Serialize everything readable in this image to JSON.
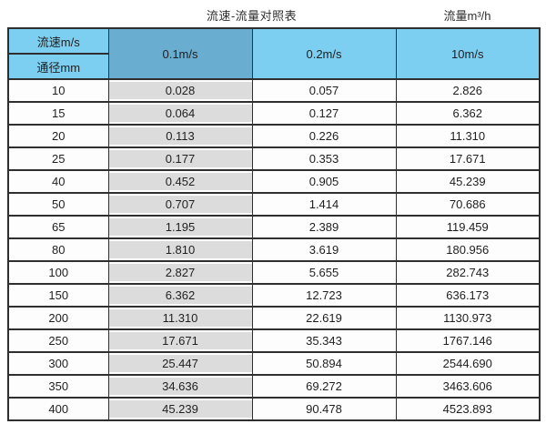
{
  "titles": {
    "main": "流速-流量对照表",
    "right": "流量m³/h"
  },
  "colors": {
    "header_blue": "#7dcff2",
    "highlight_header_blue": "#69add0",
    "highlight_column_gray": "#dcdcdc",
    "border_dark": "#2f2f2f"
  },
  "chart_data": {
    "type": "table",
    "title": "流速-流量对照表",
    "right_title": "流量m³/h",
    "corner_top_label": "流速m/s",
    "corner_bottom_label": "通径mm",
    "velocity_columns": [
      "0.1m/s",
      "0.2m/s",
      "10m/s"
    ],
    "highlighted_column": "0.1m/s",
    "diameters_mm": [
      10,
      15,
      20,
      25,
      40,
      50,
      65,
      80,
      100,
      150,
      200,
      250,
      300,
      350,
      400
    ],
    "flow_rows": [
      [
        "10",
        "0.028",
        "0.057",
        "2.826"
      ],
      [
        "15",
        "0.064",
        "0.127",
        "6.362"
      ],
      [
        "20",
        "0.113",
        "0.226",
        "11.310"
      ],
      [
        "25",
        "0.177",
        "0.353",
        "17.671"
      ],
      [
        "40",
        "0.452",
        "0.905",
        "45.239"
      ],
      [
        "50",
        "0.707",
        "1.414",
        "70.686"
      ],
      [
        "65",
        "1.195",
        "2.389",
        "119.459"
      ],
      [
        "80",
        "1.810",
        "3.619",
        "180.956"
      ],
      [
        "100",
        "2.827",
        "5.655",
        "282.743"
      ],
      [
        "150",
        "6.362",
        "12.723",
        "636.173"
      ],
      [
        "200",
        "11.310",
        "22.619",
        "1130.973"
      ],
      [
        "250",
        "17.671",
        "35.343",
        "1767.146"
      ],
      [
        "300",
        "25.447",
        "50.894",
        "2544.690"
      ],
      [
        "350",
        "34.636",
        "69.272",
        "3463.606"
      ],
      [
        "400",
        "45.239",
        "90.478",
        "4523.893"
      ]
    ]
  }
}
